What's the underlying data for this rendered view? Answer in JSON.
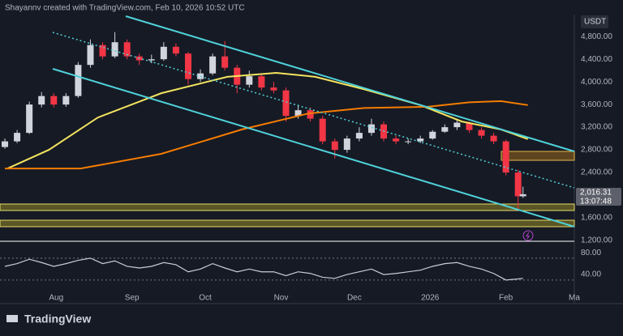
{
  "header": {
    "credit": "Shayannv created with TradingView.com, Feb 10, 2026 10:52 UTC"
  },
  "footer": {
    "brand": "TradingView"
  },
  "chart_data": [
    {
      "type": "candlestick",
      "currency": "USDT",
      "last_price_label": "2,016.31",
      "countdown": "13:07:48",
      "up_color": "#d1d4dc",
      "down_color": "#f23645",
      "xlim": [
        0,
        235
      ],
      "xticks": [
        {
          "value": 23,
          "label": "Aug"
        },
        {
          "value": 54,
          "label": "Sep"
        },
        {
          "value": 84,
          "label": "Oct"
        },
        {
          "value": 115,
          "label": "Nov"
        },
        {
          "value": 145,
          "label": "Dec"
        },
        {
          "value": 176,
          "label": "2026"
        },
        {
          "value": 207,
          "label": "Feb"
        },
        {
          "value": 235,
          "label": "Ma"
        }
      ],
      "ylim": [
        1200,
        5160
      ],
      "yticks": [
        {
          "value": 4800,
          "label": "4,800.00"
        },
        {
          "value": 4400,
          "label": "4,400.00"
        },
        {
          "value": 4000,
          "label": "4,000.00"
        },
        {
          "value": 3600,
          "label": "3,600.00"
        },
        {
          "value": 3200,
          "label": "3,200.00"
        },
        {
          "value": 2800,
          "label": "2,800.00"
        },
        {
          "value": 2400,
          "label": "2,400.00"
        },
        {
          "value": 1600,
          "label": "1,600.00"
        },
        {
          "value": 1200,
          "label": "1,200.00"
        }
      ],
      "x": [
        2,
        7,
        12,
        17,
        22,
        27,
        32,
        37,
        42,
        47,
        52,
        57,
        62,
        67,
        72,
        77,
        82,
        87,
        92,
        97,
        102,
        107,
        112,
        117,
        122,
        127,
        132,
        137,
        142,
        147,
        152,
        157,
        162,
        167,
        172,
        177,
        182,
        187,
        192,
        197,
        202,
        207,
        212,
        214
      ],
      "open": [
        2850,
        2950,
        3100,
        3600,
        3750,
        3600,
        3750,
        4300,
        4650,
        4450,
        4700,
        4450,
        4380,
        4400,
        4620,
        4500,
        4050,
        4150,
        4450,
        4250,
        3950,
        4100,
        3900,
        3850,
        3400,
        3500,
        3350,
        2950,
        2800,
        3000,
        3100,
        3250,
        3000,
        2950,
        2950,
        3000,
        3120,
        3200,
        3280,
        3150,
        3050,
        2950,
        2400,
        1980
      ],
      "high": [
        3000,
        3150,
        3650,
        3820,
        3800,
        3800,
        4350,
        4750,
        4700,
        4880,
        4750,
        4500,
        4480,
        4700,
        4680,
        4530,
        4220,
        4500,
        4720,
        4300,
        4200,
        4150,
        4000,
        3900,
        3600,
        3550,
        3400,
        3000,
        3050,
        3200,
        3350,
        3300,
        3050,
        3000,
        3050,
        3150,
        3250,
        3350,
        3300,
        3200,
        3100,
        2980,
        2450,
        2150
      ],
      "low": [
        2820,
        2920,
        3080,
        3550,
        3550,
        3560,
        3720,
        4250,
        4400,
        4420,
        4400,
        4300,
        4330,
        4370,
        4450,
        3950,
        4000,
        4120,
        4200,
        3800,
        3900,
        3850,
        3800,
        3300,
        3350,
        3300,
        2900,
        2650,
        2750,
        2950,
        3050,
        2950,
        2900,
        2900,
        2920,
        2980,
        3100,
        3150,
        3100,
        3000,
        2900,
        2350,
        1750,
        1950
      ],
      "close": [
        2950,
        3100,
        3600,
        3750,
        3600,
        3750,
        4300,
        4650,
        4450,
        4700,
        4450,
        4380,
        4400,
        4620,
        4500,
        4050,
        4150,
        4450,
        4250,
        3950,
        4100,
        3900,
        3850,
        3400,
        3500,
        3350,
        2950,
        2800,
        3000,
        3100,
        3250,
        3000,
        2950,
        2950,
        3000,
        3120,
        3200,
        3280,
        3150,
        3050,
        2950,
        2400,
        1980,
        2016.31
      ],
      "series": [
        {
          "color": "#f3e45f",
          "x": [
            3,
            20,
            40,
            66,
            93,
            113,
            129,
            149,
            172,
            189,
            205,
            216
          ],
          "values": [
            2470,
            2800,
            3370,
            3800,
            4090,
            4160,
            4090,
            3870,
            3590,
            3300,
            3160,
            2990
          ]
        },
        {
          "color": "#f57c00",
          "x": [
            2,
            33,
            66,
            99,
            126,
            149,
            175,
            192,
            205,
            216
          ],
          "values": [
            2470,
            2470,
            2730,
            3160,
            3440,
            3540,
            3560,
            3640,
            3660,
            3590
          ]
        }
      ]
    },
    {
      "type": "line",
      "color": "#c9ccd3",
      "ylim": [
        6,
        98
      ],
      "yticks": [
        {
          "value": 80,
          "label": "80.00"
        },
        {
          "value": 40,
          "label": "40.00"
        }
      ],
      "bands": [
        70,
        30
      ],
      "x": [
        2,
        7,
        12,
        17,
        22,
        27,
        32,
        37,
        42,
        47,
        52,
        57,
        62,
        67,
        72,
        77,
        82,
        87,
        92,
        97,
        102,
        107,
        112,
        117,
        122,
        127,
        132,
        137,
        142,
        147,
        152,
        157,
        162,
        167,
        172,
        177,
        182,
        187,
        192,
        197,
        202,
        207,
        212,
        214
      ],
      "values": [
        55,
        60,
        68,
        62,
        55,
        60,
        66,
        70,
        60,
        65,
        55,
        52,
        55,
        62,
        58,
        45,
        50,
        60,
        52,
        45,
        50,
        45,
        45,
        38,
        45,
        42,
        35,
        33,
        40,
        45,
        50,
        40,
        42,
        45,
        48,
        55,
        60,
        62,
        55,
        50,
        42,
        30,
        32,
        33
      ]
    }
  ]
}
